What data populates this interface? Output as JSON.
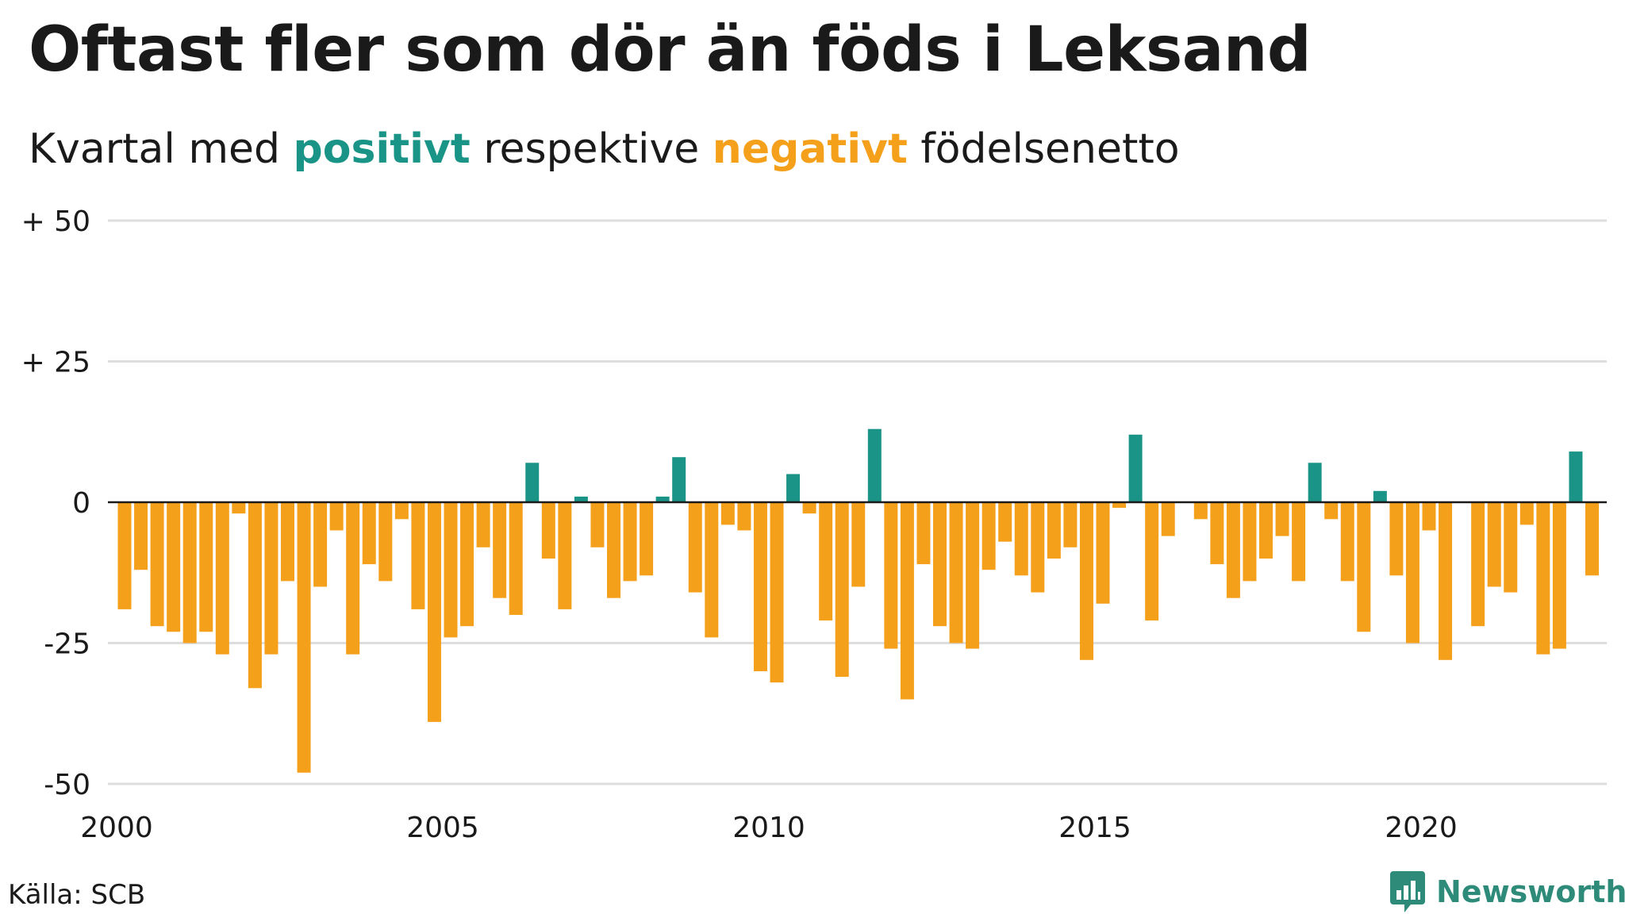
{
  "title": "Oftast fler som dör än föds i Leksand",
  "subtitle": {
    "prefix": "Kvartal med ",
    "positive": "positivt",
    "middle": " respektive ",
    "negative": "negativt",
    "suffix": " födelsenetto"
  },
  "source": "Källa: SCB",
  "brand": "Newsworthy",
  "colors": {
    "positive": "#1a9487",
    "negative": "#f5a01a",
    "grid": "#dddddd",
    "zero": "#1a1a1a",
    "brand": "#2e8b7a"
  },
  "chart_data": {
    "type": "bar",
    "x_start": "2000 Q1",
    "x_tick_labels": [
      "2000",
      "2005",
      "2010",
      "2015",
      "2020"
    ],
    "y_tick_labels": [
      "+ 50",
      "+ 25",
      "0",
      "-25",
      "-50"
    ],
    "y_ticks": [
      50,
      25,
      0,
      -25,
      -50
    ],
    "ylim": [
      -50,
      50
    ],
    "grid": true,
    "values": [
      -19,
      -12,
      -22,
      -23,
      -25,
      -23,
      -27,
      -2,
      -33,
      -27,
      -14,
      -48,
      -15,
      -5,
      -27,
      -11,
      -14,
      -3,
      -19,
      -39,
      -24,
      -22,
      -8,
      -17,
      -20,
      7,
      -10,
      -19,
      1,
      -8,
      -17,
      -14,
      -13,
      1,
      8,
      -16,
      -24,
      -4,
      -5,
      -30,
      -32,
      5,
      -2,
      -21,
      -31,
      -15,
      13,
      -26,
      -35,
      -11,
      -22,
      -25,
      -26,
      -12,
      -7,
      -13,
      -16,
      -10,
      -8,
      -28,
      -18,
      -1,
      12,
      -21,
      -6,
      0,
      -3,
      -11,
      -17,
      -14,
      -10,
      -6,
      -14,
      7,
      -3,
      -14,
      -23,
      2,
      -13,
      -25,
      -5,
      -28,
      0,
      -22,
      -15,
      -16,
      -4,
      -27,
      -26,
      9,
      -13
    ]
  }
}
